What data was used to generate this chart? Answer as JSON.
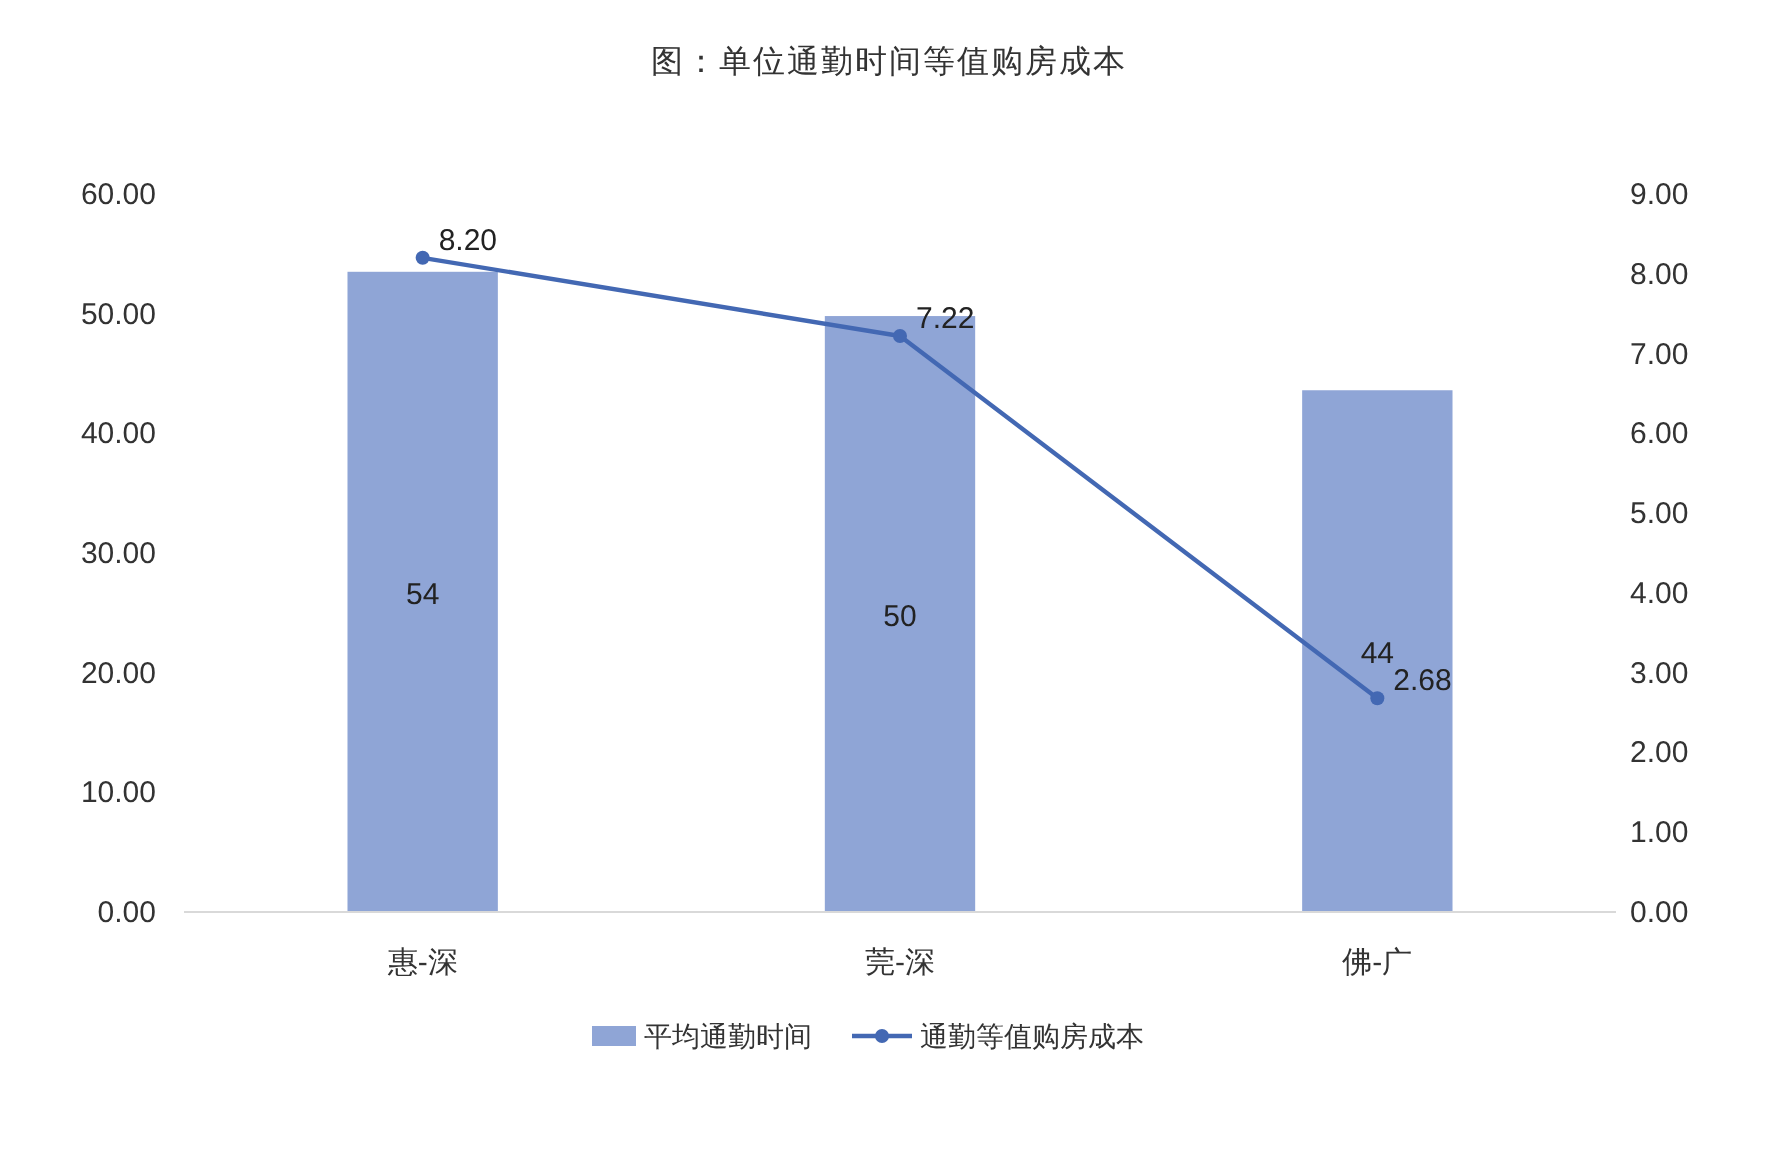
{
  "chart_data": {
    "type": "bar",
    "title": "图：单位通勤时间等值购房成本",
    "categories": [
      "惠-深",
      "莞-深",
      "佛-广"
    ],
    "series": [
      {
        "name": "平均通勤时间",
        "color": "#8fa5d6",
        "values": [
          53.5,
          49.8,
          43.6
        ],
        "value_labels": [
          "54",
          "50",
          "44"
        ]
      },
      {
        "name": "通勤等值购房成本",
        "type": "line",
        "axis": "y2",
        "color": "#4368b3",
        "marker": "circle",
        "values": [
          8.2,
          7.22,
          2.68
        ],
        "value_labels": [
          "8.20",
          "7.22",
          "2.68"
        ]
      }
    ],
    "ylim": [
      0,
      60
    ],
    "yticks": [
      {
        "value": 0,
        "label": "0.00"
      },
      {
        "value": 10,
        "label": "10.00"
      },
      {
        "value": 20,
        "label": "20.00"
      },
      {
        "value": 30,
        "label": "30.00"
      },
      {
        "value": 40,
        "label": "40.00"
      },
      {
        "value": 50,
        "label": "50.00"
      },
      {
        "value": 60,
        "label": "60.00"
      }
    ],
    "y2lim": [
      0,
      9
    ],
    "y2ticks": [
      {
        "value": 0,
        "label": "0.00"
      },
      {
        "value": 1,
        "label": "1.00"
      },
      {
        "value": 2,
        "label": "2.00"
      },
      {
        "value": 3,
        "label": "3.00"
      },
      {
        "value": 4,
        "label": "4.00"
      },
      {
        "value": 5,
        "label": "5.00"
      },
      {
        "value": 6,
        "label": "6.00"
      },
      {
        "value": 7,
        "label": "7.00"
      },
      {
        "value": 8,
        "label": "8.00"
      },
      {
        "value": 9,
        "label": "9.00"
      }
    ],
    "legend": "bottom"
  }
}
